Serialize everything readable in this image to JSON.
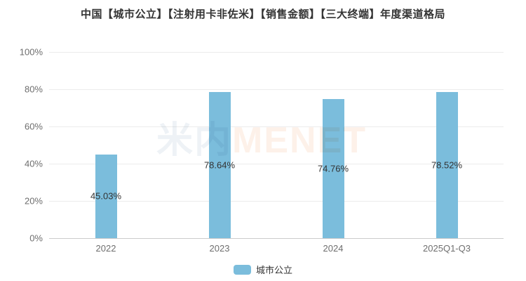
{
  "title": "中国【城市公立】【注射用卡非佐米】【销售金额】【三大终端】年度渠道格局",
  "watermark": {
    "cn": "米内",
    "en": "MENET"
  },
  "colors": {
    "bar": "#7bbddc",
    "grid": "#ececec",
    "axis_line": "#cccccc",
    "title_text": "#333333",
    "tick_text": "#6e6e6e",
    "value_label_text": "#333333",
    "watermark_cn": "#eef2f6",
    "watermark_en": "#fdf1e9"
  },
  "legend": [
    {
      "label": "城市公立",
      "color": "#7bbddc"
    }
  ],
  "chart_data": {
    "type": "bar",
    "title": "中国【城市公立】【注射用卡非佐米】【销售金额】【三大终端】年度渠道格局",
    "categories": [
      "2022",
      "2023",
      "2024",
      "2025Q1-Q3"
    ],
    "series": [
      {
        "name": "城市公立",
        "values": [
          45.03,
          78.64,
          74.76,
          78.52
        ]
      }
    ],
    "value_labels": [
      "45.03%",
      "78.64%",
      "74.76%",
      "78.52%"
    ],
    "xlabel": "",
    "ylabel": "",
    "ylim": [
      0,
      100
    ],
    "yticks": [
      "0%",
      "20%",
      "40%",
      "60%",
      "80%",
      "100%"
    ],
    "grid": true,
    "legend_position": "bottom"
  }
}
